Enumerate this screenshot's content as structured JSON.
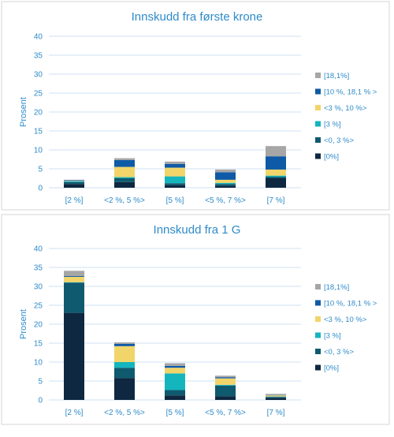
{
  "colors": {
    "axis_text": "#2E8BC9",
    "title": "#2E8BC9",
    "grid": "#CFE2F3",
    "panel_border": "#D6D6D6"
  },
  "chart_data": [
    {
      "type": "bar",
      "stacked": true,
      "title": "Innskudd fra første krone",
      "xlabel": "",
      "ylabel": "Prosent",
      "ylim": [
        0,
        40
      ],
      "yticks": [
        0,
        5,
        10,
        15,
        20,
        25,
        30,
        35,
        40
      ],
      "grid": true,
      "legend_position": "right",
      "categories": [
        "[2 %]",
        "<2 %, 5 %>",
        "[5 %]",
        "<5 %, 7 %>",
        "[7 %]"
      ],
      "series": [
        {
          "name": "[0%]",
          "color": "#0E2841",
          "values": [
            1.0,
            1.5,
            0.7,
            0.5,
            2.5
          ]
        },
        {
          "name": "<0, 3 %>",
          "color": "#0F5A6F",
          "values": [
            0.5,
            1.0,
            0.5,
            0.5,
            0.4
          ]
        },
        {
          "name": "[3 %]",
          "color": "#15B5BE",
          "values": [
            0.2,
            0.3,
            1.8,
            0.3,
            0.3
          ]
        },
        {
          "name": "<3 %, 10 %>",
          "color": "#F1D56A",
          "values": [
            0.1,
            2.7,
            2.3,
            0.8,
            1.6
          ]
        },
        {
          "name": "[10 %, 18,1 % >",
          "color": "#0F5AA6",
          "values": [
            0.2,
            1.8,
            1.0,
            2.0,
            3.5
          ]
        },
        {
          "name": "[18,1%]",
          "color": "#A6A6A6",
          "values": [
            0.1,
            0.5,
            0.6,
            0.7,
            2.7
          ]
        }
      ]
    },
    {
      "type": "bar",
      "stacked": true,
      "title": "Innskudd fra 1 G",
      "xlabel": "",
      "ylabel": "Prosent",
      "ylim": [
        0,
        40
      ],
      "yticks": [
        0,
        5,
        10,
        15,
        20,
        25,
        30,
        35,
        40
      ],
      "grid": true,
      "legend_position": "right",
      "categories": [
        "[2 %]",
        "<2 %, 5 %>",
        "[5 %]",
        "<5 %, 7 %>",
        "[7 %]"
      ],
      "series": [
        {
          "name": "[0%]",
          "color": "#0E2841",
          "values": [
            23.0,
            5.8,
            1.2,
            1.0,
            0.5
          ]
        },
        {
          "name": "<0, 3 %>",
          "color": "#0F5A6F",
          "values": [
            8.0,
            2.7,
            1.4,
            2.8,
            0.3
          ]
        },
        {
          "name": "[3 %]",
          "color": "#15B5BE",
          "values": [
            0.1,
            1.5,
            4.4,
            0.2,
            0.1
          ]
        },
        {
          "name": "<3 %, 10 %>",
          "color": "#F1D56A",
          "values": [
            1.4,
            4.2,
            1.5,
            1.7,
            0.3
          ]
        },
        {
          "name": "[10 %, 18,1 % >",
          "color": "#0F5AA6",
          "values": [
            0.2,
            0.6,
            0.5,
            0.3,
            0.1
          ]
        },
        {
          "name": "[18,1%]",
          "color": "#A6A6A6",
          "values": [
            1.4,
            0.4,
            0.7,
            0.4,
            0.3
          ]
        }
      ]
    }
  ]
}
